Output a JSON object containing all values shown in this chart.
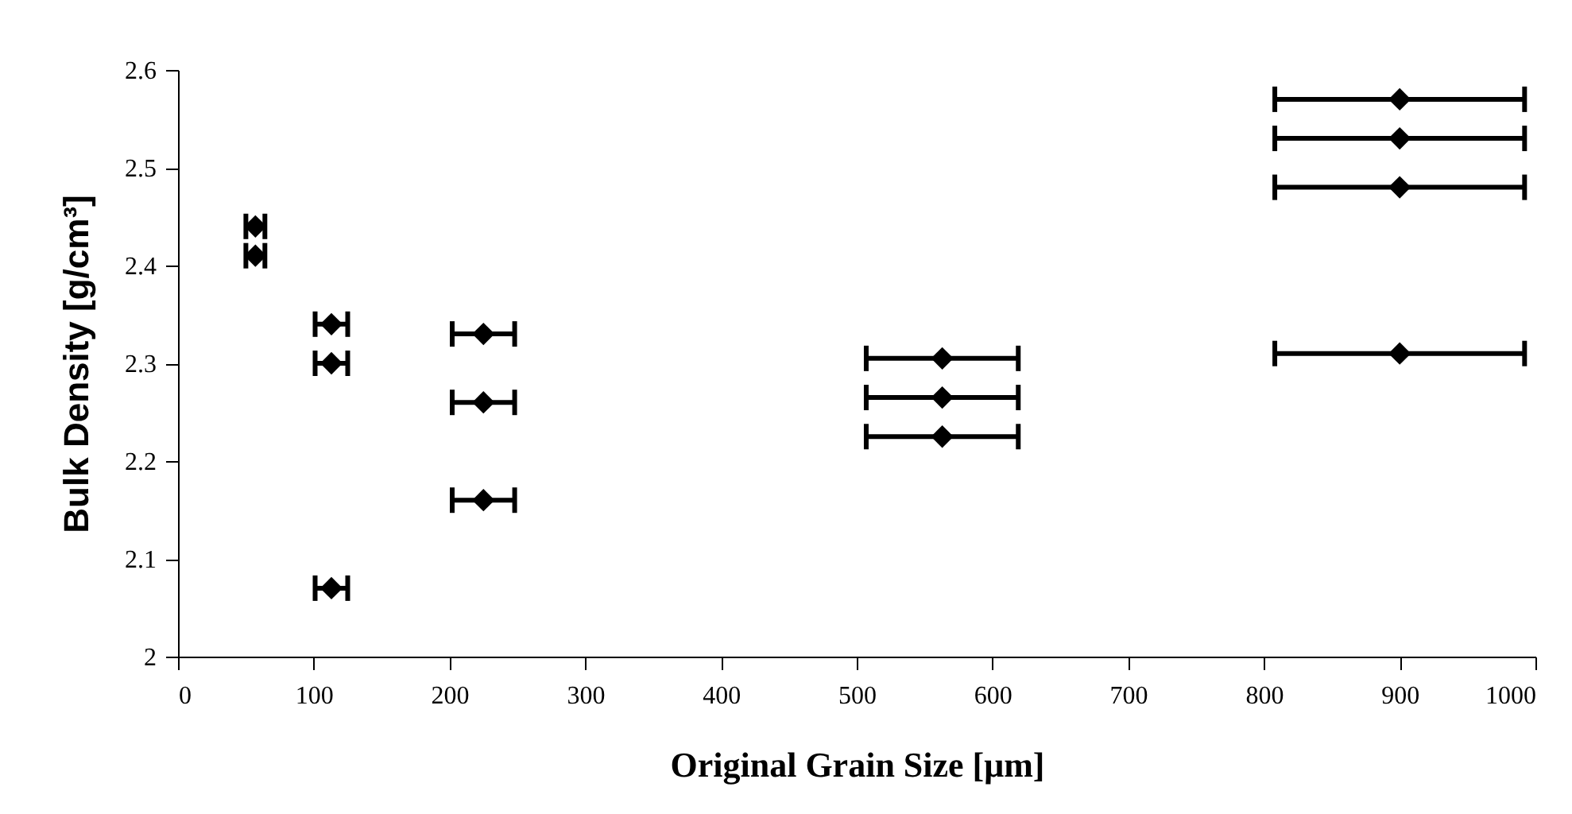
{
  "chart_data": {
    "type": "scatter",
    "xlabel": "Original Grain Size [μm]",
    "ylabel": "Bulk Density [g/cm³]",
    "x": [
      57,
      57,
      113,
      113,
      113,
      225,
      225,
      225,
      563,
      563,
      563,
      900,
      900,
      900,
      900
    ],
    "series": [
      {
        "color": "#000000",
        "values": [
          2.44,
          2.41,
          2.34,
          2.3,
          2.07,
          2.33,
          2.26,
          2.16,
          2.305,
          2.265,
          2.225,
          2.57,
          2.53,
          2.48,
          2.31
        ],
        "xerrors": [
          7,
          7,
          12,
          12,
          12,
          23,
          23,
          23,
          56,
          56,
          56,
          92,
          92,
          92,
          92
        ]
      }
    ],
    "marker": "diamond",
    "grid": false,
    "xlim": [
      0,
      1000
    ],
    "xticks": [
      0,
      100,
      200,
      300,
      400,
      500,
      600,
      700,
      800,
      900,
      1000
    ],
    "ylim": [
      2,
      2.6
    ],
    "yticks": [
      2,
      2.1,
      2.2,
      2.3,
      2.4,
      2.5,
      2.6
    ]
  }
}
